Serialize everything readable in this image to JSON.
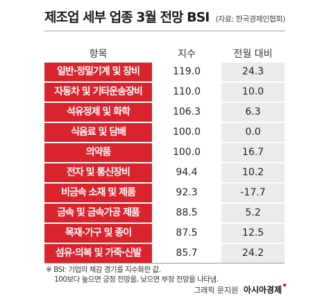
{
  "header": {
    "title": "제조업 세부 업종 3월 전망 BSI",
    "source": "(자료: 한국경제인협회)"
  },
  "columns": {
    "item": "항목",
    "index": "지수",
    "change": "전월 대비"
  },
  "chart_data": {
    "type": "table",
    "columns": [
      "항목",
      "지수",
      "전월 대비"
    ],
    "rows": [
      {
        "item": "일반·정밀기계 및 장비",
        "index": "119.0",
        "change": "24.3"
      },
      {
        "item": "자동차 및 기타운송장비",
        "index": "110.0",
        "change": "10.0"
      },
      {
        "item": "석유정제 및 화학",
        "index": "106.3",
        "change": "6.3"
      },
      {
        "item": "식음료 및 담배",
        "index": "100.0",
        "change": "0.0"
      },
      {
        "item": "의약품",
        "index": "100.0",
        "change": "16.7"
      },
      {
        "item": "전자 및 통신장비",
        "index": "94.4",
        "change": "10.2"
      },
      {
        "item": "비금속 소재 및 제품",
        "index": "92.3",
        "change": "-17.7"
      },
      {
        "item": "금속 및 금속가공 제품",
        "index": "88.5",
        "change": "5.2"
      },
      {
        "item": "목재·가구 및 종이",
        "index": "87.5",
        "change": "12.5"
      },
      {
        "item": "섬유·의복 및 가죽·신발",
        "index": "85.7",
        "change": "24.2"
      }
    ]
  },
  "footnote": {
    "line1": "※ BSI: 기업의 체감 경기를 지수화한 값.",
    "line2": "100보다 높으면 긍정 전망을, 낮으면 부정 전망을 나타냄."
  },
  "credit": {
    "text": "그래픽 문지원",
    "brand": "아시아경제"
  },
  "colors": {
    "accent": "#d9232d",
    "change_bg": "#ebebeb"
  }
}
